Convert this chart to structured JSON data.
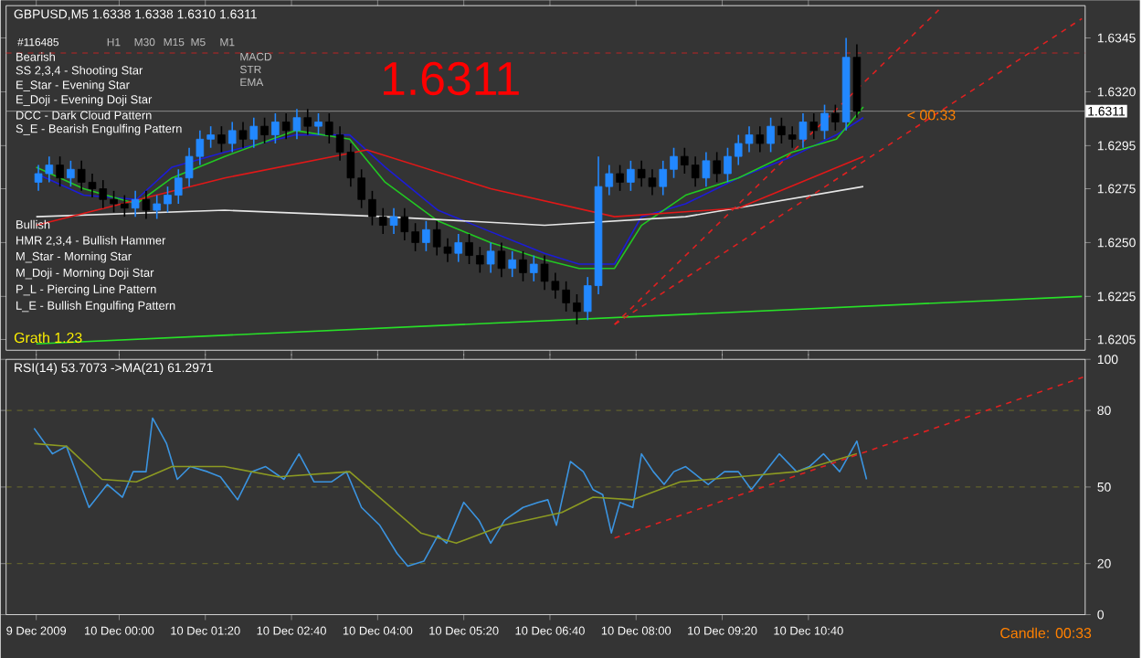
{
  "chart_data": [
    {
      "type": "candlestick",
      "title": "GBPUSD,M5 1.6338 1.6338 1.6310 1.6311",
      "x": [
        "2009-12-09T22:45",
        "2009-12-09T22:55",
        "2009-12-09T23:05",
        "2009-12-09T23:15",
        "2009-12-09T23:25",
        "2009-12-09T23:35",
        "2009-12-09T23:45",
        "2009-12-09T23:55",
        "2009-12-10T00:05",
        "2009-12-10T00:15",
        "2009-12-10T00:25",
        "2009-12-10T00:35",
        "2009-12-10T00:45",
        "2009-12-10T00:55",
        "2009-12-10T01:05",
        "2009-12-10T01:15",
        "2009-12-10T01:25",
        "2009-12-10T01:35",
        "2009-12-10T01:45",
        "2009-12-10T01:55",
        "2009-12-10T02:05",
        "2009-12-10T02:15",
        "2009-12-10T02:25",
        "2009-12-10T02:35",
        "2009-12-10T02:45",
        "2009-12-10T02:55",
        "2009-12-10T03:05",
        "2009-12-10T03:15",
        "2009-12-10T03:25",
        "2009-12-10T03:35",
        "2009-12-10T03:45",
        "2009-12-10T03:55",
        "2009-12-10T04:05",
        "2009-12-10T04:15",
        "2009-12-10T04:25",
        "2009-12-10T04:35",
        "2009-12-10T04:45",
        "2009-12-10T04:55",
        "2009-12-10T05:05",
        "2009-12-10T05:15",
        "2009-12-10T05:25",
        "2009-12-10T05:35",
        "2009-12-10T05:45",
        "2009-12-10T05:55",
        "2009-12-10T06:05",
        "2009-12-10T06:15",
        "2009-12-10T06:25",
        "2009-12-10T06:35",
        "2009-12-10T06:45",
        "2009-12-10T06:55",
        "2009-12-10T07:05",
        "2009-12-10T07:15",
        "2009-12-10T07:25",
        "2009-12-10T07:35",
        "2009-12-10T07:45",
        "2009-12-10T07:55",
        "2009-12-10T08:05",
        "2009-12-10T08:15",
        "2009-12-10T08:25",
        "2009-12-10T08:35",
        "2009-12-10T08:45",
        "2009-12-10T08:55",
        "2009-12-10T09:05",
        "2009-12-10T09:15",
        "2009-12-10T09:25",
        "2009-12-10T09:35",
        "2009-12-10T09:45",
        "2009-12-10T09:55",
        "2009-12-10T10:05",
        "2009-12-10T10:15",
        "2009-12-10T10:25",
        "2009-12-10T10:35",
        "2009-12-10T10:45",
        "2009-12-10T10:55",
        "2009-12-10T11:05",
        "2009-12-10T11:15",
        "2009-12-10T11:25"
      ],
      "ohlc": [
        [
          1.6278,
          1.6286,
          1.6274,
          1.6282
        ],
        [
          1.6282,
          1.629,
          1.6278,
          1.6286
        ],
        [
          1.6286,
          1.629,
          1.6276,
          1.628
        ],
        [
          1.628,
          1.6288,
          1.6276,
          1.6284
        ],
        [
          1.6284,
          1.6288,
          1.6274,
          1.6278
        ],
        [
          1.6278,
          1.6282,
          1.6271,
          1.6275
        ],
        [
          1.6275,
          1.6279,
          1.6266,
          1.627
        ],
        [
          1.627,
          1.6274,
          1.6264,
          1.6268
        ],
        [
          1.6268,
          1.6272,
          1.6262,
          1.6266
        ],
        [
          1.6266,
          1.6274,
          1.6262,
          1.627
        ],
        [
          1.627,
          1.6274,
          1.6261,
          1.6265
        ],
        [
          1.6265,
          1.6272,
          1.6261,
          1.6268
        ],
        [
          1.6268,
          1.6276,
          1.6264,
          1.6272
        ],
        [
          1.6272,
          1.6284,
          1.6268,
          1.628
        ],
        [
          1.628,
          1.6294,
          1.6276,
          1.629
        ],
        [
          1.629,
          1.6302,
          1.6286,
          1.6298
        ],
        [
          1.6298,
          1.6304,
          1.6294,
          1.63
        ],
        [
          1.63,
          1.6304,
          1.6292,
          1.6296
        ],
        [
          1.6296,
          1.6306,
          1.6292,
          1.6302
        ],
        [
          1.6302,
          1.6306,
          1.6294,
          1.6298
        ],
        [
          1.6298,
          1.6308,
          1.6294,
          1.6304
        ],
        [
          1.6304,
          1.6308,
          1.6296,
          1.63
        ],
        [
          1.63,
          1.631,
          1.6296,
          1.6306
        ],
        [
          1.6306,
          1.631,
          1.6298,
          1.6302
        ],
        [
          1.6302,
          1.6312,
          1.6298,
          1.6308
        ],
        [
          1.6308,
          1.6312,
          1.63,
          1.6304
        ],
        [
          1.6304,
          1.631,
          1.63,
          1.6306
        ],
        [
          1.6306,
          1.631,
          1.6296,
          1.63
        ],
        [
          1.63,
          1.6304,
          1.6288,
          1.6292
        ],
        [
          1.6292,
          1.6296,
          1.6276,
          1.628
        ],
        [
          1.628,
          1.6284,
          1.6266,
          1.627
        ],
        [
          1.627,
          1.6274,
          1.6258,
          1.6262
        ],
        [
          1.6262,
          1.6266,
          1.6254,
          1.6258
        ],
        [
          1.6258,
          1.6266,
          1.6254,
          1.6262
        ],
        [
          1.6262,
          1.6266,
          1.6251,
          1.6255
        ],
        [
          1.6255,
          1.6259,
          1.6246,
          1.625
        ],
        [
          1.625,
          1.626,
          1.6246,
          1.6256
        ],
        [
          1.6256,
          1.626,
          1.6244,
          1.6248
        ],
        [
          1.6248,
          1.6252,
          1.6241,
          1.6245
        ],
        [
          1.6245,
          1.6254,
          1.6241,
          1.625
        ],
        [
          1.625,
          1.6254,
          1.624,
          1.6244
        ],
        [
          1.6244,
          1.6248,
          1.6236,
          1.624
        ],
        [
          1.624,
          1.625,
          1.6236,
          1.6246
        ],
        [
          1.6246,
          1.625,
          1.6234,
          1.6238
        ],
        [
          1.6238,
          1.6246,
          1.6234,
          1.6242
        ],
        [
          1.6242,
          1.6246,
          1.6232,
          1.6236
        ],
        [
          1.6236,
          1.6244,
          1.6232,
          1.624
        ],
        [
          1.624,
          1.6244,
          1.6228,
          1.6232
        ],
        [
          1.6232,
          1.6236,
          1.6224,
          1.6228
        ],
        [
          1.6228,
          1.6232,
          1.6218,
          1.6222
        ],
        [
          1.6222,
          1.6226,
          1.6212,
          1.6218
        ],
        [
          1.6218,
          1.6234,
          1.6214,
          1.623
        ],
        [
          1.623,
          1.629,
          1.6226,
          1.6276
        ],
        [
          1.6276,
          1.6286,
          1.6272,
          1.6282
        ],
        [
          1.6282,
          1.6286,
          1.6274,
          1.6278
        ],
        [
          1.6278,
          1.6288,
          1.6274,
          1.6284
        ],
        [
          1.6284,
          1.6288,
          1.6276,
          1.628
        ],
        [
          1.628,
          1.6284,
          1.6272,
          1.6276
        ],
        [
          1.6276,
          1.6288,
          1.6272,
          1.6284
        ],
        [
          1.6284,
          1.6294,
          1.628,
          1.629
        ],
        [
          1.629,
          1.6294,
          1.6282,
          1.6286
        ],
        [
          1.6286,
          1.629,
          1.6276,
          1.628
        ],
        [
          1.628,
          1.6292,
          1.6276,
          1.6288
        ],
        [
          1.6288,
          1.6292,
          1.6278,
          1.6282
        ],
        [
          1.6282,
          1.6294,
          1.6278,
          1.629
        ],
        [
          1.629,
          1.63,
          1.6286,
          1.6296
        ],
        [
          1.6296,
          1.6304,
          1.6292,
          1.63
        ],
        [
          1.63,
          1.6304,
          1.6292,
          1.6296
        ],
        [
          1.6296,
          1.6308,
          1.6292,
          1.6304
        ],
        [
          1.6304,
          1.6308,
          1.6296,
          1.63
        ],
        [
          1.63,
          1.6304,
          1.6294,
          1.6298
        ],
        [
          1.6298,
          1.631,
          1.6294,
          1.6306
        ],
        [
          1.6306,
          1.631,
          1.6298,
          1.6302
        ],
        [
          1.6302,
          1.6314,
          1.6298,
          1.631
        ],
        [
          1.631,
          1.6314,
          1.6302,
          1.6306
        ],
        [
          1.6306,
          1.6345,
          1.6302,
          1.6336
        ],
        [
          1.6336,
          1.6342,
          1.6308,
          1.6311
        ]
      ],
      "series": [
        {
          "type": "line",
          "color": "#1c1cd8",
          "x": [
            "2009-12-09T22:43",
            "2009-12-09T23:27",
            "2009-12-10T00:16",
            "2009-12-10T00:49",
            "2009-12-10T01:38",
            "2009-12-10T02:44",
            "2009-12-10T03:34",
            "2009-12-10T04:07",
            "2009-12-10T04:56",
            "2009-12-10T05:45",
            "2009-12-10T06:35",
            "2009-12-10T07:07",
            "2009-12-10T07:40",
            "2009-12-10T08:05",
            "2009-12-10T08:46",
            "2009-12-10T09:35",
            "2009-12-10T10:25",
            "2009-12-10T11:06",
            "2009-12-10T11:31"
          ],
          "values": [
            1.6282,
            1.6272,
            1.627,
            1.6285,
            1.6292,
            1.63,
            1.63,
            1.6285,
            1.6265,
            1.6255,
            1.6245,
            1.624,
            1.624,
            1.6262,
            1.6268,
            1.628,
            1.629,
            1.63,
            1.6308
          ]
        },
        {
          "type": "line",
          "color": "#22c822",
          "x": [
            "2009-12-09T22:43",
            "2009-12-09T23:27",
            "2009-12-10T00:16",
            "2009-12-10T00:49",
            "2009-12-10T01:38",
            "2009-12-10T02:44",
            "2009-12-10T03:34",
            "2009-12-10T04:07",
            "2009-12-10T04:56",
            "2009-12-10T05:45",
            "2009-12-10T06:35",
            "2009-12-10T07:07",
            "2009-12-10T07:40",
            "2009-12-10T08:05",
            "2009-12-10T08:46",
            "2009-12-10T09:35",
            "2009-12-10T10:25",
            "2009-12-10T11:06",
            "2009-12-10T11:31"
          ],
          "values": [
            1.6285,
            1.6275,
            1.6268,
            1.628,
            1.629,
            1.6302,
            1.6298,
            1.6278,
            1.626,
            1.625,
            1.6242,
            1.6238,
            1.6238,
            1.6258,
            1.6272,
            1.628,
            1.6292,
            1.6298,
            1.6313
          ]
        },
        {
          "type": "line",
          "color": "#e6e6e6",
          "x": [
            "2009-12-09T22:43",
            "2009-12-10T01:38",
            "2009-12-10T04:07",
            "2009-12-10T06:35",
            "2009-12-10T08:46",
            "2009-12-10T11:31"
          ],
          "values": [
            1.6262,
            1.6265,
            1.6262,
            1.6258,
            1.6262,
            1.6276
          ]
        },
        {
          "type": "line",
          "color": "#e01818",
          "x": [
            "2009-12-09T22:43",
            "2009-12-10T01:38",
            "2009-12-10T03:50",
            "2009-12-10T05:45",
            "2009-12-10T07:40",
            "2009-12-10T09:35",
            "2009-12-10T11:31"
          ],
          "values": [
            1.6258,
            1.628,
            1.6293,
            1.6275,
            1.6262,
            1.6266,
            1.629
          ]
        },
        {
          "type": "line",
          "color": "#28e028",
          "x": [
            "2009-12-09T22:43",
            "2009-12-10T14:54"
          ],
          "values": [
            1.6203,
            1.6225
          ]
        },
        {
          "type": "line",
          "color": "#e02020",
          "line_style": "dashed",
          "x": [
            "2009-12-10T07:40",
            "2009-12-10T12:41"
          ],
          "values": [
            1.6212,
            1.6358
          ]
        },
        {
          "type": "line",
          "color": "#e02020",
          "line_style": "dashed",
          "x": [
            "2009-12-10T07:40",
            "2009-12-10T14:54"
          ],
          "values": [
            1.6212,
            1.6354
          ]
        }
      ],
      "xlim": [
        "2009-12-09T22:15",
        "2009-12-10T14:57"
      ],
      "ylim": [
        1.62,
        1.636
      ],
      "xticks": [
        {
          "value": "2009-12-09T22:43",
          "label": null
        },
        {
          "value": "2009-12-10T00:00",
          "label": null
        },
        {
          "value": "2009-12-10T01:20",
          "label": null
        },
        {
          "value": "2009-12-10T02:40",
          "label": null
        },
        {
          "value": "2009-12-10T04:00",
          "label": null
        },
        {
          "value": "2009-12-10T05:20",
          "label": null
        },
        {
          "value": "2009-12-10T06:40",
          "label": null
        },
        {
          "value": "2009-12-10T08:00",
          "label": null
        },
        {
          "value": "2009-12-10T09:20",
          "label": null
        },
        {
          "value": "2009-12-10T10:40",
          "label": null
        }
      ],
      "yticks": [
        1.6345,
        {
          "value": 1.632,
          "label": "1.6320"
        },
        1.6295,
        1.6275,
        {
          "value": 1.625,
          "label": "1.6250"
        },
        1.6225,
        1.6205
      ],
      "tick_labels": "y",
      "ref_lines": [
        {
          "axis": "y",
          "value": 1.6338,
          "color": "#e02020",
          "line_style": "dashed"
        },
        {
          "axis": "y",
          "value": 1.6311,
          "label": "1.6311",
          "color": "#a0a0a0"
        }
      ],
      "annotations": [
        "Bearish",
        "SS 2,3,4 - Shooting Star",
        "E_Star - Evening Star",
        "E_Doji - Evening Doji Star",
        "DCC - Dark Cloud Pattern",
        "S_E - Bearish Engulfing Pattern",
        "Bullish",
        "HMR 2,3,4 - Bullish Hammer",
        "M_Star - Morning Star",
        "M_Doji - Morning Doji Star",
        "P_L - Piercing Line Pattern",
        "L_E - Bullish Engulfing Pattern",
        "1.6311",
        "< 00:33",
        "Grath 1.23",
        "#116485",
        "H1",
        "M30",
        "M15",
        "M5",
        "M1",
        "MACD",
        "STR",
        "EMA"
      ]
    },
    {
      "type": "line",
      "title": "RSI(14) 53.7073 ->MA(21) 61.2971",
      "series": [
        {
          "color": "#3b94e0",
          "x": [
            "2009-12-09T22:41",
            "2009-12-09T22:58",
            "2009-12-09T23:11",
            "2009-12-09T23:32",
            "2009-12-09T23:49",
            "2009-12-10T00:03",
            "2009-12-10T00:13",
            "2009-12-10T00:25",
            "2009-12-10T00:31",
            "2009-12-10T00:44",
            "2009-12-10T00:54",
            "2009-12-10T01:06",
            "2009-12-10T01:22",
            "2009-12-10T01:34",
            "2009-12-10T01:50",
            "2009-12-10T02:03",
            "2009-12-10T02:16",
            "2009-12-10T02:33",
            "2009-12-10T02:47",
            "2009-12-10T03:01",
            "2009-12-10T03:17",
            "2009-12-10T03:31",
            "2009-12-10T03:45",
            "2009-12-10T04:02",
            "2009-12-10T04:18",
            "2009-12-10T04:28",
            "2009-12-10T04:43",
            "2009-12-10T04:56",
            "2009-12-10T05:04",
            "2009-12-10T05:20",
            "2009-12-10T05:34",
            "2009-12-10T05:45",
            "2009-12-10T05:58",
            "2009-12-10T06:15",
            "2009-12-10T06:29",
            "2009-12-10T06:38",
            "2009-12-10T06:46",
            "2009-12-10T06:59",
            "2009-12-10T07:11",
            "2009-12-10T07:20",
            "2009-12-10T07:29",
            "2009-12-10T07:37",
            "2009-12-10T07:45",
            "2009-12-10T07:57",
            "2009-12-10T08:05",
            "2009-12-10T08:16",
            "2009-12-10T08:26",
            "2009-12-10T08:35",
            "2009-12-10T08:46",
            "2009-12-10T09:07",
            "2009-12-10T09:22",
            "2009-12-10T09:35",
            "2009-12-10T09:47",
            "2009-12-10T10:00",
            "2009-12-10T10:13",
            "2009-12-10T10:29",
            "2009-12-10T10:41",
            "2009-12-10T10:54",
            "2009-12-10T11:09",
            "2009-12-10T11:25",
            "2009-12-10T11:31",
            "2009-12-10T11:34"
          ],
          "values": [
            73,
            63,
            66,
            42,
            51,
            46,
            56,
            56,
            77,
            67,
            53,
            58,
            56,
            54,
            45,
            56,
            58,
            53,
            63,
            52,
            52,
            56,
            42,
            35,
            24,
            19,
            21,
            31,
            28,
            44,
            37,
            28,
            37,
            42,
            44,
            45,
            35,
            60,
            56,
            49,
            47,
            32,
            44,
            42,
            63,
            56,
            51,
            56,
            58,
            51,
            56,
            56,
            49,
            56,
            63,
            56,
            58,
            63,
            56,
            68,
            58,
            53
          ]
        },
        {
          "color": "#8c9a22",
          "x": [
            "2009-12-09T22:41",
            "2009-12-09T23:11",
            "2009-12-09T23:44",
            "2009-12-10T00:16",
            "2009-12-10T00:49",
            "2009-12-10T01:38",
            "2009-12-10T02:28",
            "2009-12-10T03:34",
            "2009-12-10T04:07",
            "2009-12-10T04:40",
            "2009-12-10T05:13",
            "2009-12-10T05:57",
            "2009-12-10T06:51",
            "2009-12-10T07:20",
            "2009-12-10T07:57",
            "2009-12-10T08:41",
            "2009-12-10T09:35",
            "2009-12-10T10:29",
            "2009-12-10T11:25"
          ],
          "values": [
            67,
            66,
            53,
            52,
            58,
            58,
            54,
            56,
            44,
            32,
            28,
            35,
            40,
            46,
            45,
            52,
            54,
            56,
            63
          ]
        },
        {
          "color": "#e02020",
          "line_style": "dashed",
          "x": [
            "2009-12-10T07:40",
            "2009-12-10T14:55"
          ],
          "values": [
            30,
            93
          ]
        }
      ],
      "xlim": [
        "2009-12-09T22:15",
        "2009-12-10T14:57"
      ],
      "ylim": [
        0,
        100
      ],
      "xticks": [
        {
          "value": "2009-12-09T22:43",
          "label": "9 Dec 2009"
        },
        {
          "value": "2009-12-10T00:00",
          "label": "10 Dec 00:00"
        },
        {
          "value": "2009-12-10T01:20",
          "label": "10 Dec 01:20"
        },
        {
          "value": "2009-12-10T02:40",
          "label": "10 Dec 02:40"
        },
        {
          "value": "2009-12-10T04:00",
          "label": "10 Dec 04:00"
        },
        {
          "value": "2009-12-10T05:20",
          "label": "10 Dec 05:20"
        },
        {
          "value": "2009-12-10T06:40",
          "label": "10 Dec 06:40"
        },
        {
          "value": "2009-12-10T08:00",
          "label": "10 Dec 08:00"
        },
        {
          "value": "2009-12-10T09:20",
          "label": "10 Dec 09:20"
        },
        {
          "value": "2009-12-10T10:40",
          "label": "10 Dec 10:40"
        }
      ],
      "yticks": [
        0,
        20,
        50,
        80,
        100
      ],
      "ref_lines": [
        {
          "axis": "y",
          "value": 20,
          "color": "#7a7a28",
          "line_style": "dashed"
        },
        {
          "axis": "y",
          "value": 50,
          "color": "#7a7a28",
          "line_style": "dashed"
        },
        {
          "axis": "y",
          "value": 80,
          "color": "#7a7a28",
          "line_style": "dashed"
        }
      ],
      "annotations": [
        "Candle: 00:33"
      ]
    }
  ]
}
